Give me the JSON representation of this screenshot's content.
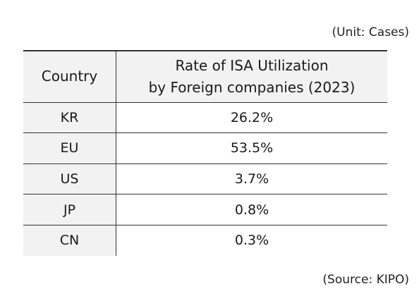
{
  "unit_note": "(Unit: Cases)",
  "source_note": "(Source: KIPO)",
  "table": {
    "headers": {
      "country": "Country",
      "rate_line1": "Rate of ISA Utilization",
      "rate_line2": "by Foreign companies (2023)"
    },
    "rows": [
      {
        "country": "KR",
        "rate": "26.2%"
      },
      {
        "country": "EU",
        "rate": "53.5%"
      },
      {
        "country": "US",
        "rate": "3.7%"
      },
      {
        "country": "JP",
        "rate": "0.8%"
      },
      {
        "country": "CN",
        "rate": "0.3%"
      }
    ]
  }
}
